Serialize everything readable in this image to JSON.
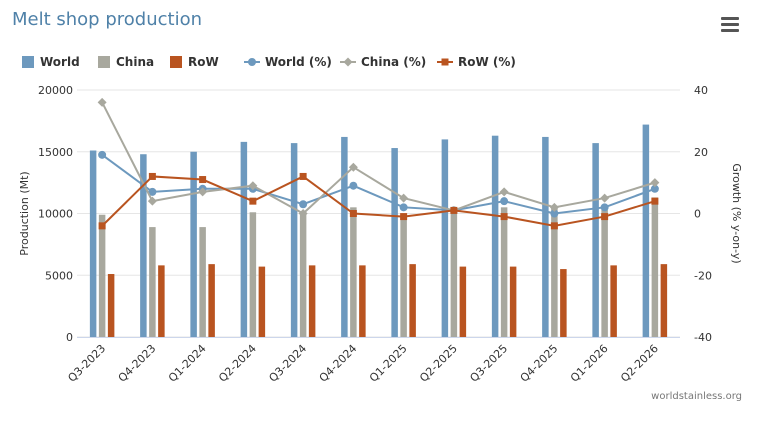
{
  "title": "Melt shop production",
  "menu_icon": "hamburger-menu-icon",
  "credit": "worldstainless.org",
  "colors": {
    "world": "#6d99be",
    "china": "#a8a89e",
    "row": "#b95420",
    "grid": "#e6e6e6",
    "axis_text": "#333333"
  },
  "legend": [
    {
      "label": "World",
      "kind": "bar",
      "color": "#6d99be"
    },
    {
      "label": "China",
      "kind": "bar",
      "color": "#a8a89e"
    },
    {
      "label": "RoW",
      "kind": "bar",
      "color": "#b95420"
    },
    {
      "label": "World (%)",
      "kind": "line-circle",
      "color": "#6d99be"
    },
    {
      "label": "China (%)",
      "kind": "line-diamond",
      "color": "#a8a89e"
    },
    {
      "label": "RoW (%)",
      "kind": "line-square",
      "color": "#b95420"
    }
  ],
  "chart_data": {
    "type": "bar",
    "categories": [
      "Q3-2023",
      "Q4-2023",
      "Q1-2024",
      "Q2-2024",
      "Q3-2024",
      "Q4-2024",
      "Q1-2025",
      "Q2-2025",
      "Q3-2025",
      "Q4-2025",
      "Q1-2026",
      "Q2-2026"
    ],
    "series": [
      {
        "name": "World",
        "type": "bar",
        "axis": "left",
        "values": [
          15100,
          14800,
          15000,
          15800,
          15700,
          16200,
          15300,
          16000,
          16300,
          16200,
          15700,
          17200
        ]
      },
      {
        "name": "China",
        "type": "bar",
        "axis": "left",
        "values": [
          9900,
          8900,
          8900,
          10100,
          10000,
          10500,
          9700,
          10200,
          10500,
          10600,
          10300,
          11300
        ]
      },
      {
        "name": "RoW",
        "type": "bar",
        "axis": "left",
        "values": [
          5100,
          5800,
          5900,
          5700,
          5800,
          5800,
          5900,
          5700,
          5700,
          5500,
          5800,
          5900
        ]
      },
      {
        "name": "World (%)",
        "type": "line",
        "marker": "circle",
        "axis": "right",
        "values": [
          19,
          7,
          8,
          8,
          3,
          9,
          2,
          1,
          4,
          0,
          2,
          8
        ]
      },
      {
        "name": "China (%)",
        "type": "line",
        "marker": "diamond",
        "axis": "right",
        "values": [
          36,
          4,
          7,
          9,
          0,
          15,
          5,
          1,
          7,
          2,
          5,
          10
        ]
      },
      {
        "name": "RoW (%)",
        "type": "line",
        "marker": "square",
        "axis": "right",
        "values": [
          -4,
          12,
          11,
          4,
          12,
          0,
          -1,
          1,
          -1,
          -4,
          -1,
          4
        ]
      }
    ],
    "ylabel": "Production (Mt)",
    "y2label": "Growth (% y-on-y)",
    "ylim": [
      0,
      20000
    ],
    "y2lim": [
      -40,
      40
    ],
    "yticks": [
      "0",
      "5000",
      "10000",
      "15000",
      "20000"
    ],
    "y2ticks": [
      "-40",
      "-20",
      "0",
      "20",
      "40"
    ],
    "grid": true,
    "legend_position": "top-left"
  }
}
